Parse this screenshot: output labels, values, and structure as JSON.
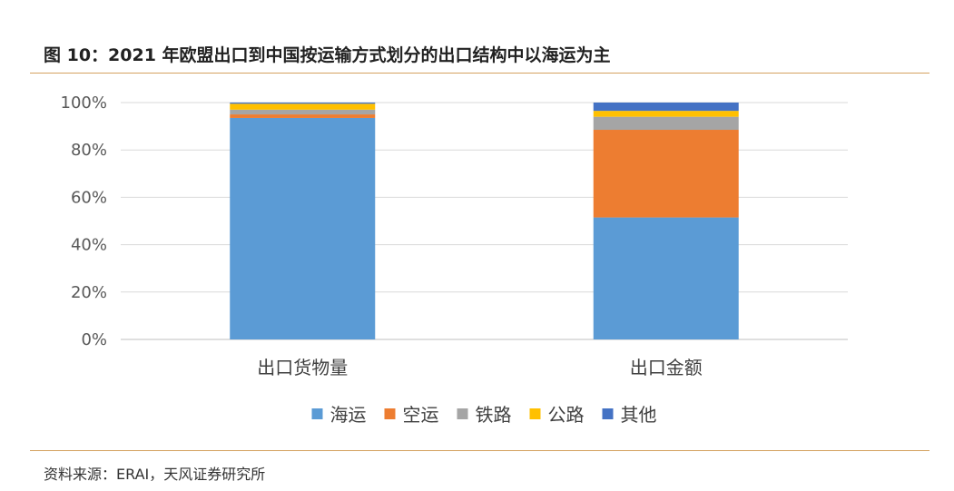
{
  "figure": {
    "title": "图 10：2021 年欧盟出口到中国按运输方式划分的出口结构中以海运为主",
    "source": "资料来源：ERAI，天风证券研究所"
  },
  "chart_data": {
    "type": "bar",
    "stacked": true,
    "categories": [
      "出口货物量",
      "出口金额"
    ],
    "series": [
      {
        "name": "海运",
        "color": "#5b9bd5",
        "values": [
          93.5,
          51.5
        ]
      },
      {
        "name": "空运",
        "color": "#ed7d31",
        "values": [
          1.5,
          37.0
        ]
      },
      {
        "name": "铁路",
        "color": "#a5a5a5",
        "values": [
          2.0,
          5.5
        ]
      },
      {
        "name": "公路",
        "color": "#ffc000",
        "values": [
          2.5,
          2.5
        ]
      },
      {
        "name": "其他",
        "color": "#4472c4",
        "values": [
          0.5,
          3.5
        ]
      }
    ],
    "ylim": [
      0,
      100
    ],
    "yticks": [
      0,
      20,
      40,
      60,
      80,
      100
    ],
    "ytick_labels": [
      "0%",
      "20%",
      "40%",
      "60%",
      "80%",
      "100%"
    ],
    "grid": true,
    "legend_position": "bottom",
    "xlabel": "",
    "ylabel": ""
  }
}
